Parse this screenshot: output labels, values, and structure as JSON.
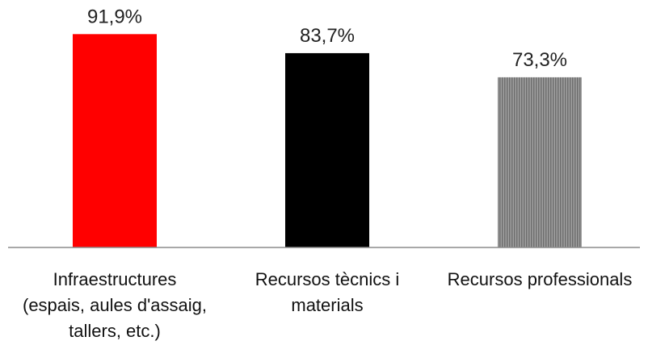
{
  "chart_data": {
    "type": "bar",
    "categories": [
      [
        "Infraestructures",
        "(espais, aules d'assaig,",
        "tallers, etc.)"
      ],
      [
        "Recursos tècnics i",
        "materials"
      ],
      [
        "Recursos professionals"
      ]
    ],
    "values": [
      91.9,
      83.7,
      73.3
    ],
    "value_labels": [
      "91,9%",
      "83,7%",
      "73,3%"
    ],
    "colors": [
      "#ff0000",
      "#000000",
      "#808080"
    ],
    "patterns": [
      "solid",
      "solid",
      "vertical-stripes"
    ],
    "title": "",
    "xlabel": "",
    "ylabel": "",
    "ylim": [
      0,
      100
    ],
    "grid": false,
    "legend": "none"
  }
}
